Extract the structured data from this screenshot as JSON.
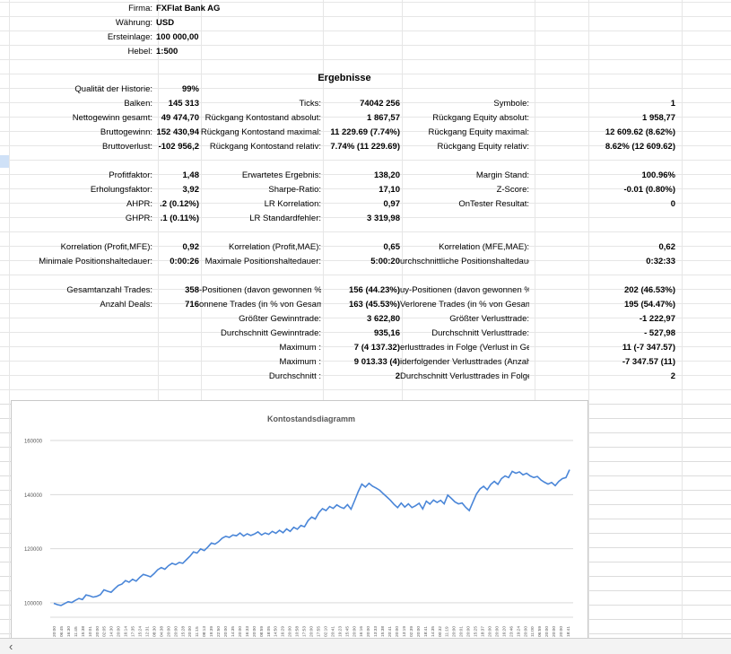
{
  "header": [
    {
      "label": "Firma:",
      "value": "FXFlat Bank AG"
    },
    {
      "label": "Währung:",
      "value": "USD"
    },
    {
      "label": "Ersteinlage:",
      "value": "100 000,00"
    },
    {
      "label": "Hebel:",
      "value": "1:500"
    }
  ],
  "results_title": "Ergebnisse",
  "stats": {
    "r1": [
      {
        "label": "Qualität der Historie:",
        "value": "99%"
      }
    ],
    "r2": [
      {
        "label": "Balken:",
        "value": "145 313"
      },
      {
        "label": "Ticks:",
        "value": "74042 256"
      },
      {
        "label": "Symbole:",
        "value": "1"
      }
    ],
    "r3": [
      {
        "label": "Nettogewinn gesamt:",
        "value": "49 474,70"
      },
      {
        "label": "Rückgang Kontostand absolut:",
        "value": "1 867,57"
      },
      {
        "label": "Rückgang Equity absolut:",
        "value": "1 958,77"
      }
    ],
    "r4": [
      {
        "label": "Bruttogewinn:",
        "value": "152 430,94"
      },
      {
        "label": "Rückgang Kontostand maximal:",
        "value": "11 229.69 (7.74%)"
      },
      {
        "label": "Rückgang Equity maximal:",
        "value": "12 609.62 (8.62%)"
      }
    ],
    "r5": [
      {
        "label": "Bruttoverlust:",
        "value": "-102 956,2"
      },
      {
        "label": "Rückgang Kontostand relativ:",
        "value": "7.74% (11 229.69)"
      },
      {
        "label": "Rückgang Equity relativ:",
        "value": "8.62% (12 609.62)"
      }
    ],
    "r6": [
      {
        "label": "Profitfaktor:",
        "value": "1,48"
      },
      {
        "label": "Erwartetes Ergebnis:",
        "value": "138,20"
      },
      {
        "label": "Margin Stand:",
        "value": "100.96%"
      }
    ],
    "r7": [
      {
        "label": "Erholungsfaktor:",
        "value": "3,92"
      },
      {
        "label": "Sharpe-Ratio:",
        "value": "17,10"
      },
      {
        "label": "Z-Score:",
        "value": "-0.01 (0.80%)"
      }
    ],
    "r8": [
      {
        "label": "AHPR:",
        "value": ".2 (0.12%)"
      },
      {
        "label": "LR Korrelation:",
        "value": "0,97"
      },
      {
        "label": "OnTester Resultat:",
        "value": "0"
      }
    ],
    "r9": [
      {
        "label": "GHPR:",
        "value": ".1 (0.11%)"
      },
      {
        "label": "LR Standardfehler:",
        "value": "3 319,98"
      }
    ],
    "r10": [
      {
        "label": "Korrelation (Profit,MFE):",
        "value": "0,92"
      },
      {
        "label": "Korrelation (Profit,MAE):",
        "value": "0,65"
      },
      {
        "label": "Korrelation (MFE,MAE):",
        "value": "0,62"
      }
    ],
    "r11": [
      {
        "label": "Minimale Positionshaltedauer:",
        "value": "0:00:26"
      },
      {
        "label": "Maximale Positionshaltedauer:",
        "value": "5:00:20"
      },
      {
        "label": "urchschnittliche Positionshaltedauer:",
        "value": "0:32:33"
      }
    ],
    "r12": [
      {
        "label": "Gesamtanzahl Trades:",
        "value": "358"
      },
      {
        "label": "-Positionen (davon gewonnen %):",
        "value": "156 (44.23%)"
      },
      {
        "label": "uy-Positionen (davon gewonnen %):",
        "value": "202 (46.53%)"
      }
    ],
    "r13": [
      {
        "label": "Anzahl Deals:",
        "value": "716"
      },
      {
        "label": "onnene Trades (in % von Gesamt):",
        "value": "163 (45.53%)"
      },
      {
        "label": "Verlorene Trades (in % von Gesamt):",
        "value": "195 (54.47%)"
      }
    ],
    "r14": [
      {
        "label": "Größter Gewinntrade:",
        "value": "3 622,80"
      },
      {
        "label": "Größter Verlusttrade:",
        "value": "-1 222,97"
      }
    ],
    "r15": [
      {
        "label": "Durchschnitt Gewinntrade:",
        "value": "935,16"
      },
      {
        "label": "Durchschnitt Verlusttrade:",
        "value": "- 527,98"
      }
    ],
    "r16": [
      {
        "label": "Maximum :",
        "value": "7 (4 137.32)"
      },
      {
        "label": "erlusttrades in Folge (Verlust in Geld):",
        "value": "11 (-7 347.57)"
      }
    ],
    "r17": [
      {
        "label": "Maximum :",
        "value": "9 013.33 (4)"
      },
      {
        "label": "iderfolgender Verlusttrades (Anzahl):",
        "value": "-7 347.57 (11)"
      }
    ],
    "r18": [
      {
        "label": "Durchschnitt :",
        "value": "2"
      },
      {
        "label": "Durchschnitt Verlusttrades in Folge:",
        "value": "2"
      }
    ]
  },
  "chart_data": {
    "type": "line",
    "title": "Kontostandsdiagramm",
    "xlabel": "",
    "ylabel": "",
    "ylim": [
      95000,
      162000
    ],
    "y_ticks": [
      "100000",
      "120000",
      "140000",
      "160000"
    ],
    "y_tick_values": [
      100000,
      120000,
      140000,
      160000
    ],
    "grid": true,
    "color": "#4a86d8",
    "x_tick_labels": [
      "20:00",
      "06:45",
      "16:30",
      "11:45",
      "15:38",
      "10:01",
      "20:00",
      "02:05",
      "14:30",
      "20:00",
      "16:14",
      "17:35",
      "15:24",
      "12:31",
      "08:30",
      "04:38",
      "20:00",
      "20:00",
      "15:28",
      "20:00",
      "11:15",
      "08:13",
      "19:39",
      "22:50",
      "20:00",
      "14:35",
      "20:00",
      "16:33",
      "20:00",
      "08:59",
      "18:05",
      "14:50",
      "16:29",
      "20:00",
      "10:58",
      "17:53",
      "20:00",
      "17:55",
      "02:10",
      "20:41",
      "19:23",
      "15:45",
      "20:00",
      "16:16",
      "20:00",
      "13:33",
      "15:38",
      "20:41",
      "20:00",
      "13:19",
      "02:39",
      "20:00",
      "18:41",
      "14:35",
      "00:32",
      "11:19",
      "20:00",
      "20:01",
      "20:00",
      "15:25",
      "18:37",
      "20:00",
      "20:00",
      "16:20",
      "23:46",
      "19:24",
      "20:00",
      "11:00",
      "06:59",
      "20:00",
      "20:00",
      "20:00",
      "18:41"
    ],
    "x": [
      0,
      1,
      2,
      3,
      4,
      5,
      6,
      7,
      8,
      9,
      10,
      11,
      12,
      13,
      14,
      15,
      16,
      17,
      18,
      19,
      20,
      21,
      22,
      23,
      24,
      25,
      26,
      27,
      28,
      29,
      30,
      31,
      32,
      33,
      34,
      35,
      36,
      37,
      38,
      39,
      40,
      41,
      42,
      43,
      44,
      45,
      46,
      47,
      48,
      49,
      50,
      51,
      52,
      53,
      54,
      55,
      56,
      57,
      58,
      59,
      60,
      61,
      62,
      63,
      64,
      65,
      66,
      67,
      68,
      69,
      70,
      71,
      72,
      73,
      74,
      75,
      76,
      77,
      78,
      79,
      80,
      81,
      82,
      83,
      84,
      85,
      86,
      87,
      88,
      89,
      90,
      91,
      92,
      93,
      94,
      95,
      96,
      97,
      98,
      99,
      100,
      101,
      102,
      103,
      104,
      105,
      106,
      107,
      108,
      109,
      110,
      111,
      112,
      113,
      114,
      115,
      116,
      117,
      118,
      119,
      120,
      121,
      122,
      123,
      124,
      125,
      126,
      127,
      128,
      129,
      130,
      131,
      132,
      133,
      134,
      135,
      136,
      137,
      138,
      139,
      140,
      141,
      142,
      143,
      144
    ],
    "values": [
      99800,
      99300,
      99000,
      99700,
      100400,
      100100,
      100900,
      101600,
      101200,
      102900,
      102600,
      102100,
      102400,
      103000,
      104800,
      104300,
      103900,
      105200,
      106400,
      106900,
      108200,
      107600,
      108700,
      108000,
      109400,
      110500,
      110100,
      109600,
      110800,
      112200,
      113000,
      112400,
      113700,
      114600,
      114100,
      114900,
      114600,
      115900,
      117200,
      118800,
      118400,
      119900,
      119300,
      120600,
      122100,
      121700,
      122600,
      123900,
      124600,
      124200,
      125100,
      124800,
      125800,
      124700,
      125500,
      124900,
      125400,
      126200,
      125100,
      125800,
      125300,
      126400,
      125700,
      126800,
      125900,
      127300,
      126400,
      127900,
      127200,
      128600,
      128100,
      130400,
      131700,
      131000,
      133300,
      134800,
      134100,
      135600,
      134900,
      136200,
      135400,
      134900,
      136300,
      134600,
      137800,
      141100,
      143900,
      142800,
      144200,
      143100,
      142400,
      141600,
      140300,
      139100,
      137900,
      136400,
      135200,
      136900,
      135400,
      136600,
      135200,
      135900,
      136800,
      134700,
      137600,
      136500,
      138000,
      137100,
      137900,
      136600,
      139800,
      138600,
      137300,
      136600,
      136900,
      135300,
      134100,
      137200,
      140200,
      142100,
      143100,
      141800,
      143800,
      144900,
      143800,
      145900,
      146900,
      146300,
      148600,
      147900,
      148400,
      147300,
      147900,
      146900,
      146300,
      146700,
      145400,
      144600,
      143900,
      144500,
      143300,
      144900,
      145900,
      146300,
      149200
    ],
    "x_tick_count": 73
  }
}
